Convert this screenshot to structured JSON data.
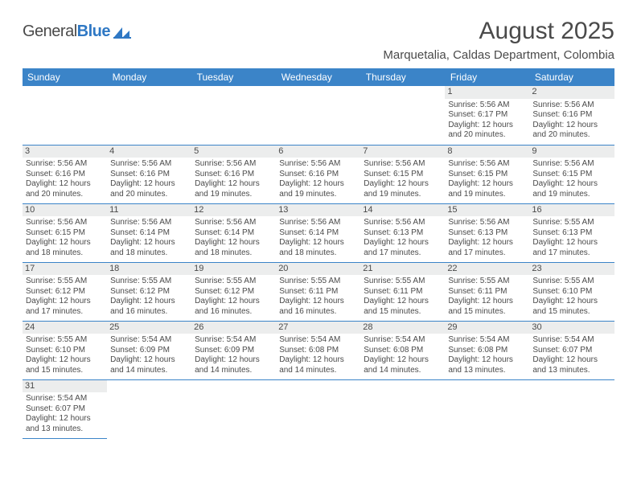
{
  "logo": {
    "name1": "General",
    "name2": "Blue"
  },
  "title": "August 2025",
  "subtitle": "Marquetalia, Caldas Department, Colombia",
  "colors": {
    "header_bg": "#3b84c8",
    "header_fg": "#ffffff",
    "daynum_bg": "#eceded",
    "text": "#4a4a4a",
    "rule": "#3b84c8"
  },
  "fonts": {
    "title_size": 30,
    "subtitle_size": 15,
    "th_size": 12,
    "cell_size": 10
  },
  "weekdays": [
    "Sunday",
    "Monday",
    "Tuesday",
    "Wednesday",
    "Thursday",
    "Friday",
    "Saturday"
  ],
  "weeks": [
    [
      null,
      null,
      null,
      null,
      null,
      {
        "n": "1",
        "sr": "Sunrise: 5:56 AM",
        "ss": "Sunset: 6:17 PM",
        "d1": "Daylight: 12 hours",
        "d2": "and 20 minutes."
      },
      {
        "n": "2",
        "sr": "Sunrise: 5:56 AM",
        "ss": "Sunset: 6:16 PM",
        "d1": "Daylight: 12 hours",
        "d2": "and 20 minutes."
      }
    ],
    [
      {
        "n": "3",
        "sr": "Sunrise: 5:56 AM",
        "ss": "Sunset: 6:16 PM",
        "d1": "Daylight: 12 hours",
        "d2": "and 20 minutes."
      },
      {
        "n": "4",
        "sr": "Sunrise: 5:56 AM",
        "ss": "Sunset: 6:16 PM",
        "d1": "Daylight: 12 hours",
        "d2": "and 20 minutes."
      },
      {
        "n": "5",
        "sr": "Sunrise: 5:56 AM",
        "ss": "Sunset: 6:16 PM",
        "d1": "Daylight: 12 hours",
        "d2": "and 19 minutes."
      },
      {
        "n": "6",
        "sr": "Sunrise: 5:56 AM",
        "ss": "Sunset: 6:16 PM",
        "d1": "Daylight: 12 hours",
        "d2": "and 19 minutes."
      },
      {
        "n": "7",
        "sr": "Sunrise: 5:56 AM",
        "ss": "Sunset: 6:15 PM",
        "d1": "Daylight: 12 hours",
        "d2": "and 19 minutes."
      },
      {
        "n": "8",
        "sr": "Sunrise: 5:56 AM",
        "ss": "Sunset: 6:15 PM",
        "d1": "Daylight: 12 hours",
        "d2": "and 19 minutes."
      },
      {
        "n": "9",
        "sr": "Sunrise: 5:56 AM",
        "ss": "Sunset: 6:15 PM",
        "d1": "Daylight: 12 hours",
        "d2": "and 19 minutes."
      }
    ],
    [
      {
        "n": "10",
        "sr": "Sunrise: 5:56 AM",
        "ss": "Sunset: 6:15 PM",
        "d1": "Daylight: 12 hours",
        "d2": "and 18 minutes."
      },
      {
        "n": "11",
        "sr": "Sunrise: 5:56 AM",
        "ss": "Sunset: 6:14 PM",
        "d1": "Daylight: 12 hours",
        "d2": "and 18 minutes."
      },
      {
        "n": "12",
        "sr": "Sunrise: 5:56 AM",
        "ss": "Sunset: 6:14 PM",
        "d1": "Daylight: 12 hours",
        "d2": "and 18 minutes."
      },
      {
        "n": "13",
        "sr": "Sunrise: 5:56 AM",
        "ss": "Sunset: 6:14 PM",
        "d1": "Daylight: 12 hours",
        "d2": "and 18 minutes."
      },
      {
        "n": "14",
        "sr": "Sunrise: 5:56 AM",
        "ss": "Sunset: 6:13 PM",
        "d1": "Daylight: 12 hours",
        "d2": "and 17 minutes."
      },
      {
        "n": "15",
        "sr": "Sunrise: 5:56 AM",
        "ss": "Sunset: 6:13 PM",
        "d1": "Daylight: 12 hours",
        "d2": "and 17 minutes."
      },
      {
        "n": "16",
        "sr": "Sunrise: 5:55 AM",
        "ss": "Sunset: 6:13 PM",
        "d1": "Daylight: 12 hours",
        "d2": "and 17 minutes."
      }
    ],
    [
      {
        "n": "17",
        "sr": "Sunrise: 5:55 AM",
        "ss": "Sunset: 6:12 PM",
        "d1": "Daylight: 12 hours",
        "d2": "and 17 minutes."
      },
      {
        "n": "18",
        "sr": "Sunrise: 5:55 AM",
        "ss": "Sunset: 6:12 PM",
        "d1": "Daylight: 12 hours",
        "d2": "and 16 minutes."
      },
      {
        "n": "19",
        "sr": "Sunrise: 5:55 AM",
        "ss": "Sunset: 6:12 PM",
        "d1": "Daylight: 12 hours",
        "d2": "and 16 minutes."
      },
      {
        "n": "20",
        "sr": "Sunrise: 5:55 AM",
        "ss": "Sunset: 6:11 PM",
        "d1": "Daylight: 12 hours",
        "d2": "and 16 minutes."
      },
      {
        "n": "21",
        "sr": "Sunrise: 5:55 AM",
        "ss": "Sunset: 6:11 PM",
        "d1": "Daylight: 12 hours",
        "d2": "and 15 minutes."
      },
      {
        "n": "22",
        "sr": "Sunrise: 5:55 AM",
        "ss": "Sunset: 6:11 PM",
        "d1": "Daylight: 12 hours",
        "d2": "and 15 minutes."
      },
      {
        "n": "23",
        "sr": "Sunrise: 5:55 AM",
        "ss": "Sunset: 6:10 PM",
        "d1": "Daylight: 12 hours",
        "d2": "and 15 minutes."
      }
    ],
    [
      {
        "n": "24",
        "sr": "Sunrise: 5:55 AM",
        "ss": "Sunset: 6:10 PM",
        "d1": "Daylight: 12 hours",
        "d2": "and 15 minutes."
      },
      {
        "n": "25",
        "sr": "Sunrise: 5:54 AM",
        "ss": "Sunset: 6:09 PM",
        "d1": "Daylight: 12 hours",
        "d2": "and 14 minutes."
      },
      {
        "n": "26",
        "sr": "Sunrise: 5:54 AM",
        "ss": "Sunset: 6:09 PM",
        "d1": "Daylight: 12 hours",
        "d2": "and 14 minutes."
      },
      {
        "n": "27",
        "sr": "Sunrise: 5:54 AM",
        "ss": "Sunset: 6:08 PM",
        "d1": "Daylight: 12 hours",
        "d2": "and 14 minutes."
      },
      {
        "n": "28",
        "sr": "Sunrise: 5:54 AM",
        "ss": "Sunset: 6:08 PM",
        "d1": "Daylight: 12 hours",
        "d2": "and 14 minutes."
      },
      {
        "n": "29",
        "sr": "Sunrise: 5:54 AM",
        "ss": "Sunset: 6:08 PM",
        "d1": "Daylight: 12 hours",
        "d2": "and 13 minutes."
      },
      {
        "n": "30",
        "sr": "Sunrise: 5:54 AM",
        "ss": "Sunset: 6:07 PM",
        "d1": "Daylight: 12 hours",
        "d2": "and 13 minutes."
      }
    ],
    [
      {
        "n": "31",
        "sr": "Sunrise: 5:54 AM",
        "ss": "Sunset: 6:07 PM",
        "d1": "Daylight: 12 hours",
        "d2": "and 13 minutes."
      },
      null,
      null,
      null,
      null,
      null,
      null
    ]
  ]
}
